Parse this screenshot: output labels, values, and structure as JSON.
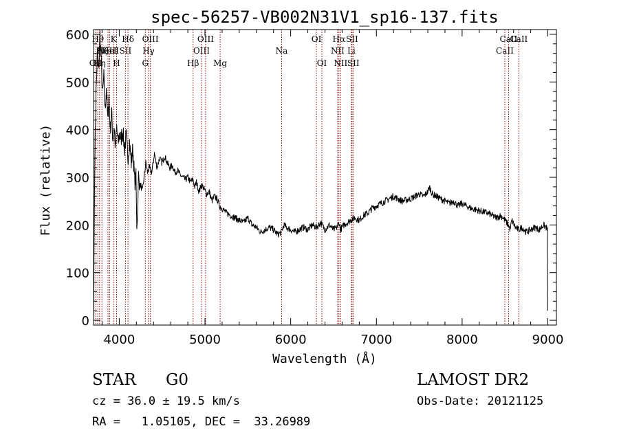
{
  "chart_data": {
    "type": "line",
    "title": "spec-56257-VB002N31V1_sp16-137.fits",
    "xlabel": "Wavelength (Å)",
    "ylabel": "Flux (relative)",
    "xlim": [
      3700,
      9100
    ],
    "ylim": [
      -10,
      610
    ],
    "xticks": [
      4000,
      5000,
      6000,
      7000,
      8000,
      9000
    ],
    "xtick_labels": [
      "4000",
      "5000",
      "6000",
      "7000",
      "8000",
      "9000"
    ],
    "yticks": [
      0,
      100,
      200,
      300,
      400,
      500,
      600
    ],
    "ytick_labels": [
      "0",
      "100",
      "200",
      "300",
      "400",
      "500",
      "600"
    ],
    "grid": false,
    "line_color": "#8b0000",
    "series": [
      {
        "x": [
          3700,
          3715,
          3730,
          3745,
          3760,
          3775,
          3790,
          3805,
          3820,
          3835,
          3850,
          3865,
          3880,
          3895,
          3910,
          3925,
          3940,
          3955,
          3970,
          3985,
          4000,
          4020,
          4040,
          4060,
          4080,
          4100,
          4120,
          4140,
          4160,
          4180,
          4195,
          4205,
          4215,
          4225,
          4235,
          4250,
          4270,
          4290,
          4310,
          4330,
          4350,
          4380,
          4410,
          4440,
          4470,
          4500,
          4530,
          4560,
          4590,
          4620,
          4650,
          4680,
          4710,
          4740,
          4770,
          4800,
          4830,
          4860,
          4880,
          4900,
          4930,
          4960,
          4990,
          5020,
          5050,
          5080,
          5110,
          5140,
          5170,
          5200,
          5250,
          5300,
          5350,
          5400,
          5450,
          5500,
          5550,
          5600,
          5650,
          5700,
          5750,
          5800,
          5850,
          5890,
          5920,
          5950,
          6000,
          6050,
          6100,
          6150,
          6200,
          6250,
          6300,
          6350,
          6400,
          6450,
          6500,
          6540,
          6563,
          6580,
          6620,
          6660,
          6700,
          6750,
          6800,
          6850,
          6900,
          6950,
          7000,
          7100,
          7200,
          7300,
          7400,
          7500,
          7550,
          7600,
          7620,
          7650,
          7700,
          7750,
          7800,
          7850,
          7900,
          7950,
          8000,
          8100,
          8200,
          8300,
          8400,
          8450,
          8500,
          8540,
          8560,
          8580,
          8620,
          8660,
          8700,
          8750,
          8800,
          8850,
          8900,
          8950,
          8980,
          8995,
          9000
        ],
        "y": [
          0,
          350,
          480,
          560,
          520,
          600,
          540,
          470,
          510,
          440,
          490,
          420,
          470,
          400,
          440,
          380,
          410,
          360,
          405,
          370,
          390,
          380,
          400,
          360,
          385,
          340,
          375,
          330,
          360,
          290,
          300,
          195,
          230,
          310,
          280,
          285,
          270,
          300,
          330,
          310,
          320,
          310,
          350,
          320,
          340,
          330,
          345,
          330,
          320,
          325,
          310,
          315,
          305,
          300,
          295,
          300,
          290,
          295,
          280,
          290,
          270,
          285,
          275,
          265,
          270,
          250,
          260,
          255,
          240,
          235,
          225,
          220,
          215,
          210,
          205,
          215,
          200,
          195,
          185,
          190,
          195,
          190,
          180,
          185,
          200,
          195,
          190,
          185,
          190,
          195,
          190,
          200,
          195,
          205,
          190,
          200,
          190,
          195,
          205,
          190,
          200,
          205,
          210,
          215,
          210,
          220,
          225,
          235,
          240,
          250,
          260,
          250,
          255,
          265,
          260,
          270,
          280,
          265,
          260,
          255,
          250,
          245,
          250,
          240,
          245,
          235,
          230,
          225,
          215,
          220,
          210,
          200,
          190,
          210,
          195,
          190,
          195,
          185,
          190,
          195,
          190,
          200,
          195,
          190,
          20
        ],
        "style": "jagged"
      }
    ],
    "lines": [
      {
        "x": 3727,
        "label": "OII",
        "row": 3
      },
      {
        "x": 3750,
        "label": "Hθ",
        "row": 1
      },
      {
        "x": 3771,
        "label": "Hη",
        "row": 3
      },
      {
        "x": 3798,
        "label": "Hζ",
        "row": 2
      },
      {
        "x": 3869,
        "label": "NeIII",
        "row": 2
      },
      {
        "x": 3889,
        "label": "HeI",
        "row": 2
      },
      {
        "x": 3934,
        "label": "K",
        "row": 1
      },
      {
        "x": 3969,
        "label": "H",
        "row": 3
      },
      {
        "x": 4072,
        "label": "SII",
        "row": 2
      },
      {
        "x": 4102,
        "label": "Hδ",
        "row": 1
      },
      {
        "x": 4304,
        "label": "G",
        "row": 3
      },
      {
        "x": 4341,
        "label": "Hγ",
        "row": 2
      },
      {
        "x": 4363,
        "label": "OIII",
        "row": 1
      },
      {
        "x": 4861,
        "label": "Hβ",
        "row": 3
      },
      {
        "x": 4959,
        "label": "OIII",
        "row": 2
      },
      {
        "x": 5007,
        "label": "OIII",
        "row": 1
      },
      {
        "x": 5177,
        "label": "Mg",
        "row": 3
      },
      {
        "x": 5894,
        "label": "Na",
        "row": 2
      },
      {
        "x": 6300,
        "label": "OI",
        "row": 1
      },
      {
        "x": 6364,
        "label": "OI",
        "row": 3
      },
      {
        "x": 6548,
        "label": "NII",
        "row": 2
      },
      {
        "x": 6563,
        "label": "Hα",
        "row": 1
      },
      {
        "x": 6583,
        "label": "NII",
        "row": 3
      },
      {
        "x": 6708,
        "label": "Li",
        "row": 2
      },
      {
        "x": 6716,
        "label": "SII",
        "row": 1
      },
      {
        "x": 6731,
        "label": "SII",
        "row": 3
      },
      {
        "x": 8498,
        "label": "CaII",
        "row": 2
      },
      {
        "x": 8542,
        "label": "CaII",
        "row": 1
      },
      {
        "x": 8662,
        "label": "CaII",
        "row": 1
      }
    ]
  },
  "info": {
    "class": "STAR",
    "subclass": "G0",
    "survey": "LAMOST DR2",
    "cz": "cz = 36.0 ± 19.5 km/s",
    "obsdate": "Obs-Date: 20121125",
    "radec": "RA =   1.05105, DEC =  33.26989"
  }
}
